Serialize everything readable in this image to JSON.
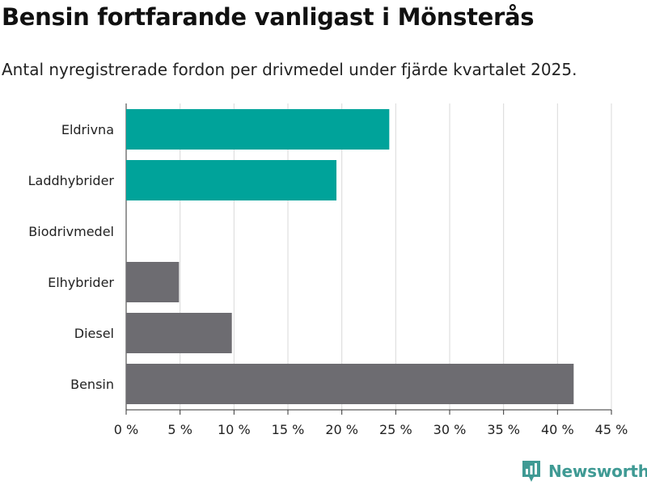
{
  "title": "Bensin fortfarande vanligast i Mönsterås",
  "subtitle": "Antal nyregistrerade fordon per drivmedel under fjärde kvartalet 2025.",
  "brand": {
    "name": "Newsworthy",
    "icon": "newsworthy-logo-icon",
    "color": "#3f9a94"
  },
  "colors": {
    "highlight": "#00a39a",
    "default": "#6d6c71",
    "grid": "#d9d9d9",
    "axis": "#333333"
  },
  "chart_data": {
    "type": "bar",
    "orientation": "horizontal",
    "title": "Bensin fortfarande vanligast i Mönsterås",
    "subtitle": "Antal nyregistrerade fordon per drivmedel under fjärde kvartalet 2025.",
    "categories": [
      "Eldrivna",
      "Laddhybrider",
      "Biodrivmedel",
      "Elhybrider",
      "Diesel",
      "Bensin"
    ],
    "values": [
      24.4,
      19.5,
      0,
      4.9,
      9.8,
      41.5
    ],
    "highlighted": [
      true,
      true,
      false,
      false,
      false,
      false
    ],
    "unit": "%",
    "xlim": [
      0,
      45
    ],
    "ticks": [
      0,
      5,
      10,
      15,
      20,
      25,
      30,
      35,
      40,
      45
    ],
    "tick_labels": [
      "0 %",
      "5 %",
      "10 %",
      "15 %",
      "20 %",
      "25 %",
      "30 %",
      "35 %",
      "40 %",
      "45 %"
    ],
    "grid": true,
    "xlabel": "",
    "ylabel": ""
  }
}
